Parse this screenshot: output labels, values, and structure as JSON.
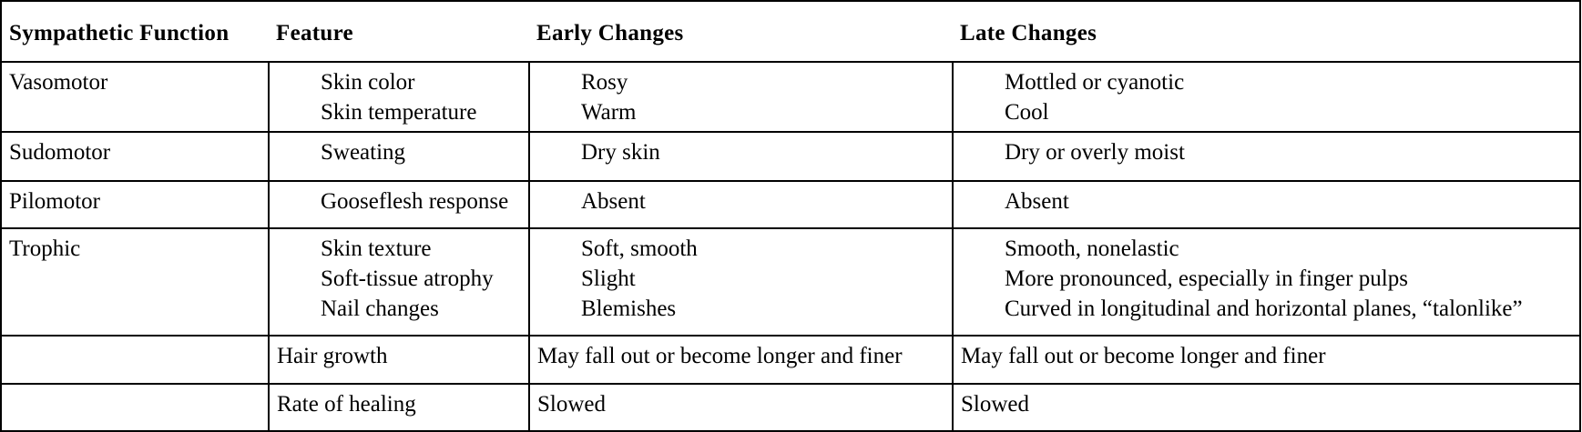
{
  "headers": [
    "Sympathetic Function",
    "Feature",
    "Early Changes",
    "Late Changes"
  ],
  "rows": [
    {
      "function": "Vasomotor",
      "features": [
        "Skin color",
        "Skin temperature"
      ],
      "early": [
        "Rosy",
        "Warm"
      ],
      "late": [
        "Mottled or cyanotic",
        "Cool"
      ]
    },
    {
      "function": "Sudomotor",
      "features": [
        "Sweating"
      ],
      "early": [
        "Dry skin"
      ],
      "late": [
        "Dry or overly moist"
      ]
    },
    {
      "function": "Pilomotor",
      "features": [
        "Gooseflesh response"
      ],
      "early": [
        "Absent"
      ],
      "late": [
        "Absent"
      ]
    },
    {
      "function": "Trophic",
      "features": [
        "Skin texture",
        "Soft-tissue atrophy",
        "Nail changes"
      ],
      "early": [
        "Soft, smooth",
        "Slight",
        "Blemishes"
      ],
      "late": [
        "Smooth, nonelastic",
        "More pronounced, especially in finger pulps",
        "Curved in longitudinal and horizontal planes, “talonlike”"
      ]
    },
    {
      "function": "",
      "features": [
        "Hair growth"
      ],
      "early": [
        "May fall out or become longer and finer"
      ],
      "late": [
        "May fall out or become longer and finer"
      ]
    },
    {
      "function": "",
      "features": [
        "Rate of healing"
      ],
      "early": [
        "Slowed"
      ],
      "late": [
        "Slowed"
      ]
    }
  ]
}
